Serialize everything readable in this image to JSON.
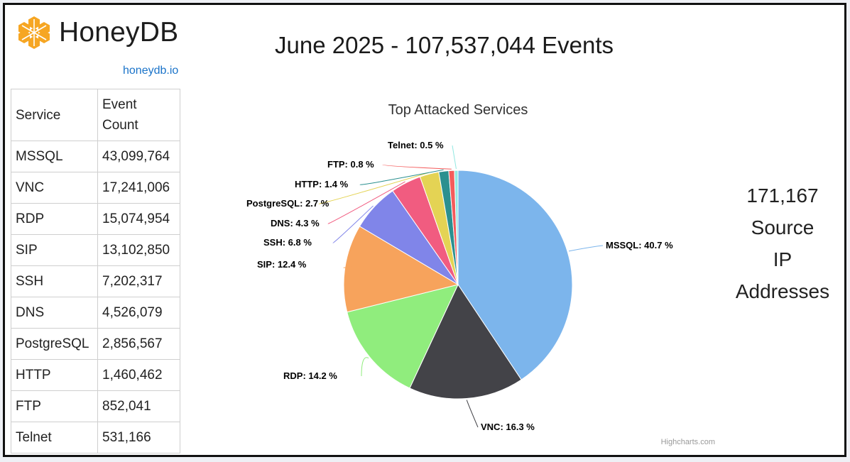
{
  "brand": {
    "name": "HoneyDB",
    "link": "honeydb.io"
  },
  "headline": "June 2025 - 107,537,044 Events",
  "table": {
    "headers": [
      "Service",
      "Event\nCount"
    ],
    "rows": [
      [
        "MSSQL",
        "43,099,764"
      ],
      [
        "VNC",
        "17,241,006"
      ],
      [
        "RDP",
        "15,074,954"
      ],
      [
        "SIP",
        "13,102,850"
      ],
      [
        "SSH",
        "7,202,317"
      ],
      [
        "DNS",
        "4,526,079"
      ],
      [
        "PostgreSQL",
        "2,856,567"
      ],
      [
        "HTTP",
        "1,460,462"
      ],
      [
        "FTP",
        "852,041"
      ],
      [
        "Telnet",
        "531,166"
      ]
    ]
  },
  "ip_summary": {
    "count": "171,167",
    "line1": "Source",
    "line2": "IP",
    "line3": "Addresses"
  },
  "chart_data": {
    "type": "pie",
    "title": "Top Attacked Services",
    "credits": "Highcharts.com",
    "slices": [
      {
        "name": "MSSQL",
        "value": 40.7,
        "label": "MSSQL: 40.7 %",
        "color": "#7cb5ec"
      },
      {
        "name": "VNC",
        "value": 16.3,
        "label": "VNC: 16.3 %",
        "color": "#434348"
      },
      {
        "name": "RDP",
        "value": 14.2,
        "label": "RDP: 14.2 %",
        "color": "#90ed7d"
      },
      {
        "name": "SIP",
        "value": 12.4,
        "label": "SIP: 12.4 %",
        "color": "#f7a35c"
      },
      {
        "name": "SSH",
        "value": 6.8,
        "label": "SSH: 6.8 %",
        "color": "#8085e9"
      },
      {
        "name": "DNS",
        "value": 4.3,
        "label": "DNS: 4.3 %",
        "color": "#f15c80"
      },
      {
        "name": "PostgreSQL",
        "value": 2.7,
        "label": "PostgreSQL: 2.7 %",
        "color": "#e4d354"
      },
      {
        "name": "HTTP",
        "value": 1.4,
        "label": "HTTP: 1.4 %",
        "color": "#2b908f"
      },
      {
        "name": "FTP",
        "value": 0.8,
        "label": "FTP: 0.8 %",
        "color": "#f45b5b"
      },
      {
        "name": "Telnet",
        "value": 0.5,
        "label": "Telnet: 0.5 %",
        "color": "#91e8e1"
      }
    ]
  }
}
